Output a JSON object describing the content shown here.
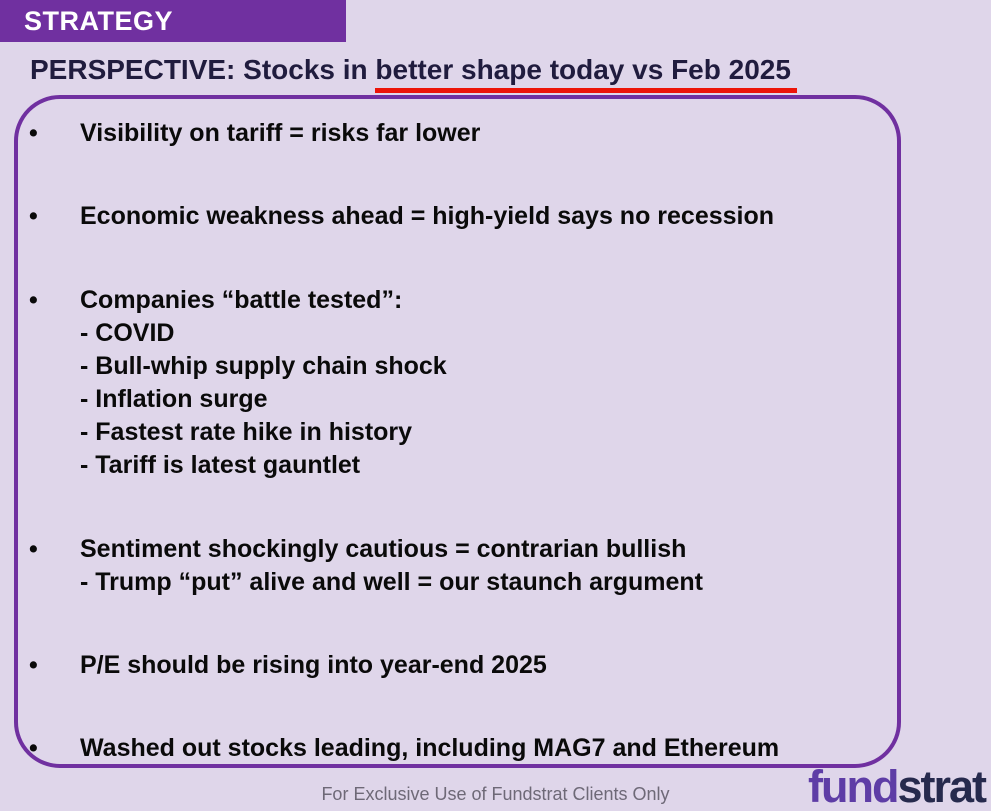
{
  "colors": {
    "background": "#DFD6EA",
    "brand_purple": "#7030A0",
    "box_border": "#7030A0",
    "title_text": "#201C3E",
    "underline_red": "#EC1408",
    "bullet_text": "#0A0A0A",
    "footer_text": "#6E6977",
    "logo_fund": "#5E3DA6",
    "logo_strat": "#262A4D"
  },
  "header": {
    "label": "STRATEGY"
  },
  "title": {
    "plain": "PERSPECTIVE: Stocks in ",
    "underlined": "better shape today vs Feb 2025"
  },
  "box": {
    "bullet_glyph": "•",
    "bullets": [
      {
        "main": "Visibility on tariff = risks far lower",
        "subs": []
      },
      {
        "main": "Economic weakness ahead = high-yield says no recession",
        "subs": []
      },
      {
        "main": "Companies “battle tested”:",
        "subs": [
          "- COVID",
          "- Bull-whip supply chain shock",
          "- Inflation surge",
          "- Fastest rate hike in history",
          "- Tariff is latest gauntlet"
        ]
      },
      {
        "main": "Sentiment shockingly cautious = contrarian bullish",
        "subs": [
          "- Trump “put” alive and well = our staunch argument"
        ]
      },
      {
        "main": "P/E should be rising into year-end 2025",
        "subs": []
      },
      {
        "main": "Washed out stocks leading, including MAG7 and Ethereum",
        "subs": []
      }
    ]
  },
  "footer": {
    "disclaimer": "For Exclusive Use of Fundstrat Clients Only",
    "logo": {
      "part1": "fund",
      "part2": "strat"
    }
  }
}
